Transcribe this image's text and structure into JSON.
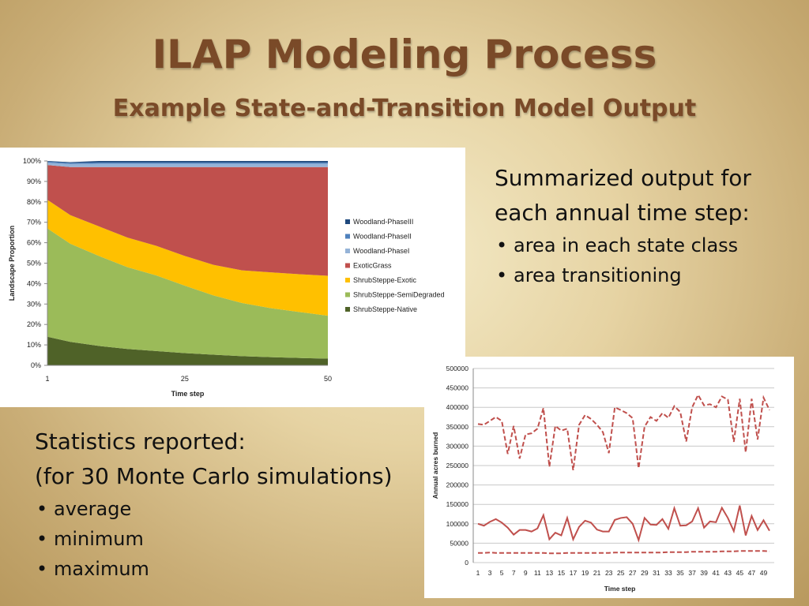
{
  "slide": {
    "title": "ILAP Modeling Process",
    "subtitle": "Example State-and-Transition Model Output"
  },
  "text_right": {
    "lead": "Summarized output for each annual time step:",
    "bullets": [
      "area in each state class",
      "area transitioning"
    ]
  },
  "text_left": {
    "lead1": "Statistics reported:",
    "lead2": "(for 30 Monte Carlo simulations)",
    "bullets": [
      "average",
      "minimum",
      "maximum"
    ]
  },
  "chart_data": [
    {
      "type": "area",
      "stacked": true,
      "xlabel": "Time step",
      "ylabel": "Landscape Proportion",
      "x": [
        1,
        5,
        10,
        15,
        20,
        25,
        30,
        35,
        40,
        45,
        50
      ],
      "x_tick_labels": [
        "1",
        "25",
        "50"
      ],
      "y_tick_labels": [
        "0%",
        "10%",
        "20%",
        "30%",
        "40%",
        "50%",
        "60%",
        "70%",
        "80%",
        "90%",
        "100%"
      ],
      "ylim": [
        0,
        1
      ],
      "legend_position": "right",
      "series": [
        {
          "name": "ShrubSteppe-Native",
          "color": "#4f6228",
          "values": [
            0.14,
            0.115,
            0.095,
            0.08,
            0.07,
            0.06,
            0.052,
            0.045,
            0.04,
            0.036,
            0.033
          ]
        },
        {
          "name": "ShrubSteppe-SemiDegraded",
          "color": "#9bbb59",
          "values": [
            0.53,
            0.48,
            0.44,
            0.4,
            0.37,
            0.33,
            0.29,
            0.26,
            0.24,
            0.225,
            0.21
          ]
        },
        {
          "name": "ShrubSteppe-Exotic",
          "color": "#ffc000",
          "values": [
            0.14,
            0.14,
            0.145,
            0.145,
            0.145,
            0.145,
            0.15,
            0.16,
            0.175,
            0.185,
            0.195
          ]
        },
        {
          "name": "ExoticGrass",
          "color": "#c0504d",
          "values": [
            0.17,
            0.235,
            0.29,
            0.345,
            0.385,
            0.435,
            0.478,
            0.505,
            0.515,
            0.524,
            0.532
          ]
        },
        {
          "name": "Woodland-PhaseI",
          "color": "#95b3d7",
          "values": [
            0.012,
            0.015,
            0.017,
            0.017,
            0.017,
            0.017,
            0.017,
            0.017,
            0.017,
            0.017,
            0.017
          ]
        },
        {
          "name": "Woodland-PhaseII",
          "color": "#4f81bd",
          "values": [
            0.005,
            0.006,
            0.006,
            0.006,
            0.006,
            0.006,
            0.006,
            0.006,
            0.006,
            0.006,
            0.006
          ]
        },
        {
          "name": "Woodland-PhaseIII",
          "color": "#1f497d",
          "values": [
            0.003,
            0.003,
            0.007,
            0.007,
            0.007,
            0.007,
            0.007,
            0.007,
            0.007,
            0.007,
            0.007
          ]
        }
      ]
    },
    {
      "type": "line",
      "xlabel": "Time step",
      "ylabel": "Annual acres burned",
      "ylim": [
        0,
        500000
      ],
      "y_tick_labels": [
        "0",
        "50000",
        "100000",
        "150000",
        "200000",
        "250000",
        "300000",
        "350000",
        "400000",
        "450000",
        "500000"
      ],
      "x_tick_labels": [
        "1",
        "3",
        "5",
        "7",
        "9",
        "11",
        "13",
        "15",
        "17",
        "19",
        "21",
        "23",
        "25",
        "27",
        "29",
        "31",
        "33",
        "35",
        "37",
        "39",
        "41",
        "43",
        "45",
        "47",
        "49"
      ],
      "grid": true,
      "series": [
        {
          "style": "dashed",
          "color": "#c0504d",
          "values": [
            357000,
            355000,
            365000,
            375000,
            365000,
            280000,
            352000,
            268000,
            330000,
            333000,
            345000,
            398000,
            247000,
            352000,
            340000,
            345000,
            238000,
            355000,
            380000,
            370000,
            355000,
            336000,
            282000,
            400000,
            393000,
            385000,
            372000,
            243000,
            350000,
            375000,
            365000,
            385000,
            373000,
            403000,
            388000,
            312000,
            400000,
            432000,
            405000,
            408000,
            400000,
            428000,
            420000,
            311000,
            422000,
            284000,
            422000,
            317000,
            425000,
            393000
          ]
        },
        {
          "style": "solid",
          "color": "#c0504d",
          "values": [
            100000,
            95000,
            105000,
            112000,
            103000,
            90000,
            72000,
            84000,
            84000,
            80000,
            88000,
            122000,
            60000,
            77000,
            70000,
            115000,
            60000,
            92000,
            108000,
            103000,
            85000,
            80000,
            80000,
            110000,
            115000,
            117000,
            100000,
            58000,
            115000,
            98000,
            97000,
            112000,
            87000,
            140000,
            95000,
            96000,
            106000,
            140000,
            90000,
            106000,
            104000,
            141000,
            115000,
            81000,
            147000,
            70000,
            120000,
            84000,
            109000,
            82000
          ]
        },
        {
          "style": "dashed",
          "color": "#c0504d",
          "values": [
            25000,
            25000,
            26000,
            25000,
            25000,
            25000,
            25000,
            25000,
            25000,
            25000,
            25000,
            25000,
            24000,
            24000,
            24000,
            25000,
            25000,
            25000,
            25000,
            25000,
            25000,
            25000,
            25000,
            26000,
            26000,
            26000,
            26000,
            26000,
            26000,
            26000,
            26000,
            26000,
            27000,
            27000,
            27000,
            27000,
            28000,
            28000,
            28000,
            28000,
            28000,
            29000,
            29000,
            29000,
            30000,
            30000,
            30000,
            30000,
            30000,
            29000
          ]
        }
      ]
    }
  ]
}
